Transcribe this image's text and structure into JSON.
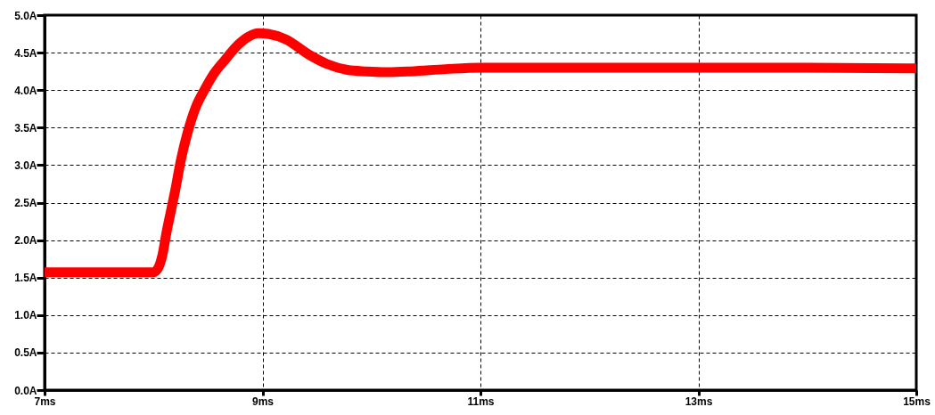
{
  "chart_data": {
    "type": "line",
    "x": [
      7.0,
      7.5,
      8.0,
      8.04,
      8.08,
      8.12,
      8.16,
      8.2,
      8.25,
      8.31,
      8.39,
      8.47,
      8.55,
      8.66,
      8.78,
      8.88,
      8.96,
      9.05,
      9.21,
      9.43,
      9.59,
      9.78,
      9.95,
      10.15,
      10.36,
      10.68,
      11.0,
      12.0,
      13.0,
      14.0,
      15.0
    ],
    "series": [
      {
        "color": "#ff0000",
        "values": [
          1.57,
          1.57,
          1.57,
          1.62,
          1.79,
          2.11,
          2.39,
          2.67,
          3.06,
          3.42,
          3.78,
          4.01,
          4.21,
          4.41,
          4.61,
          4.72,
          4.76,
          4.75,
          4.68,
          4.47,
          4.35,
          4.27,
          4.25,
          4.24,
          4.25,
          4.28,
          4.3,
          4.3,
          4.3,
          4.3,
          4.29
        ]
      }
    ],
    "xlim": [
      7,
      15
    ],
    "xticks": [
      {
        "value": 7,
        "label": "7ms"
      },
      {
        "value": 9,
        "label": "9ms"
      },
      {
        "value": 11,
        "label": "11ms"
      },
      {
        "value": 13,
        "label": "13ms"
      },
      {
        "value": 15,
        "label": "15ms"
      }
    ],
    "ylim": [
      0,
      5
    ],
    "yticks": [
      {
        "value": 0,
        "label": "0.0A"
      },
      {
        "value": 0.5,
        "label": "0.5A"
      },
      {
        "value": 1,
        "label": "1.0A"
      },
      {
        "value": 1.5,
        "label": "1.5A"
      },
      {
        "value": 2,
        "label": "2.0A"
      },
      {
        "value": 2.5,
        "label": "2.5A"
      },
      {
        "value": 3,
        "label": "3.0A"
      },
      {
        "value": 3.5,
        "label": "3.5A"
      },
      {
        "value": 4,
        "label": "4.0A"
      },
      {
        "value": 4.5,
        "label": "4.5A"
      },
      {
        "value": 5,
        "label": "5.0A"
      }
    ],
    "grid": true,
    "line_style": "solid"
  }
}
